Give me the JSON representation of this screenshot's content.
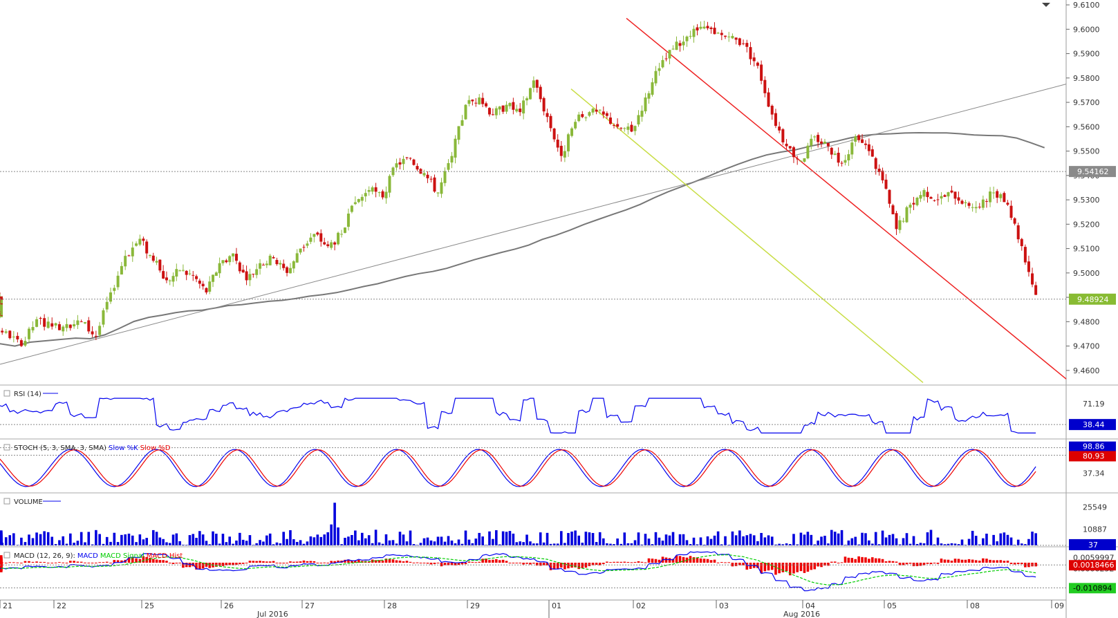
{
  "chart_data": [
    {
      "type": "candlestick",
      "name": "",
      "price_axis_labels": [
        "9.6100",
        "9.6000",
        "9.5900",
        "9.5800",
        "9.5700",
        "9.5600",
        "9.5500",
        "9.5400",
        "9.5300",
        "9.5200",
        "9.5100",
        "9.5000",
        "9.4900",
        "9.4800",
        "9.4700",
        "9.4600"
      ],
      "ylim": [
        9.454,
        9.612
      ],
      "last_price": "9.48924",
      "sma_value": "9.54162",
      "closes": [
        9.468,
        9.478,
        9.476,
        9.47,
        9.481,
        9.478,
        9.479,
        9.48,
        9.474,
        9.492,
        9.507,
        9.514,
        9.505,
        9.497,
        9.501,
        9.499,
        9.492,
        9.504,
        9.508,
        9.497,
        9.504,
        9.506,
        9.5,
        9.51,
        9.516,
        9.511,
        9.516,
        9.529,
        9.534,
        9.531,
        9.545,
        9.547,
        9.541,
        9.533,
        9.548,
        9.569,
        9.572,
        9.565,
        9.569,
        9.566,
        9.579,
        9.564,
        9.548,
        9.562,
        9.566,
        9.565,
        9.56,
        9.558,
        9.572,
        9.584,
        9.592,
        9.597,
        9.601,
        9.598,
        9.597,
        9.594,
        9.585,
        9.565,
        9.552,
        9.546,
        9.556,
        9.552,
        9.545,
        9.556,
        9.55,
        9.538,
        9.518,
        9.528,
        9.534,
        9.53,
        9.533,
        9.529,
        9.527,
        9.533,
        9.528,
        9.511,
        9.491,
        9.486,
        9.488,
        9.487,
        9.484,
        9.484,
        9.486,
        9.489
      ],
      "bars_per_day": 6,
      "date_labels": [
        "21",
        "22",
        "25",
        "26",
        "27",
        "28",
        "29",
        "01",
        "02",
        "03",
        "04",
        "05",
        "08",
        "09"
      ],
      "month_labels": [
        "Jul 2016",
        "Aug 2016"
      ]
    },
    {
      "type": "line",
      "name": "RSI (14)",
      "axis_labels": [
        "71.19"
      ],
      "last_value": "38.44"
    },
    {
      "type": "line",
      "name": "STOCH (5, 3, SMA, 3, SMA)",
      "series": [
        {
          "name": "Slow %K",
          "color": "#0000ee"
        },
        {
          "name": "Slow %D",
          "color": "#ee0000"
        }
      ],
      "axis_labels": [
        "37.34"
      ],
      "last_k": "98.86",
      "last_d": "80.93"
    },
    {
      "type": "bar",
      "name": "VOLUME",
      "axis_labels": [
        "25549",
        "10887"
      ],
      "last_value": "37"
    },
    {
      "type": "line",
      "name": "MACD (12, 26, 9)",
      "series": [
        {
          "name": "MACD",
          "color": "#0000ee"
        },
        {
          "name": "MACD Signal",
          "color": "#00cc00"
        },
        {
          "name": "MACD Hist",
          "color": "#ee0000"
        }
      ],
      "axis_labels": [
        "0.0059997",
        "0.0006252"
      ],
      "hist_value": "0.0018466",
      "macd_value": "-0.010894"
    }
  ],
  "ui": {
    "rsi_label": "RSI (14)",
    "stoch_label_prefix": "STOCH (5, 3, SMA, 3, SMA)",
    "stoch_k_label": "Slow %K",
    "stoch_d_label": "Slow %D",
    "volume_label": "VOLUME",
    "macd_label_prefix": "MACD (12, 26, 9):",
    "macd_line_label": "MACD",
    "macd_signal_label": "MACD Signal",
    "macd_hist_label": "MACD Hist"
  },
  "colors": {
    "up": "#8ab83a",
    "down": "#cc1111",
    "sma": "#777777",
    "trend_red": "#ee2222",
    "trend_yellow": "#c8dd44",
    "trend_gray": "#888888",
    "price_tag": "#88bb33",
    "sma_tag": "#8a8a8a",
    "blue": "#0000ee",
    "red": "#ee0000",
    "green": "#00cc00"
  }
}
